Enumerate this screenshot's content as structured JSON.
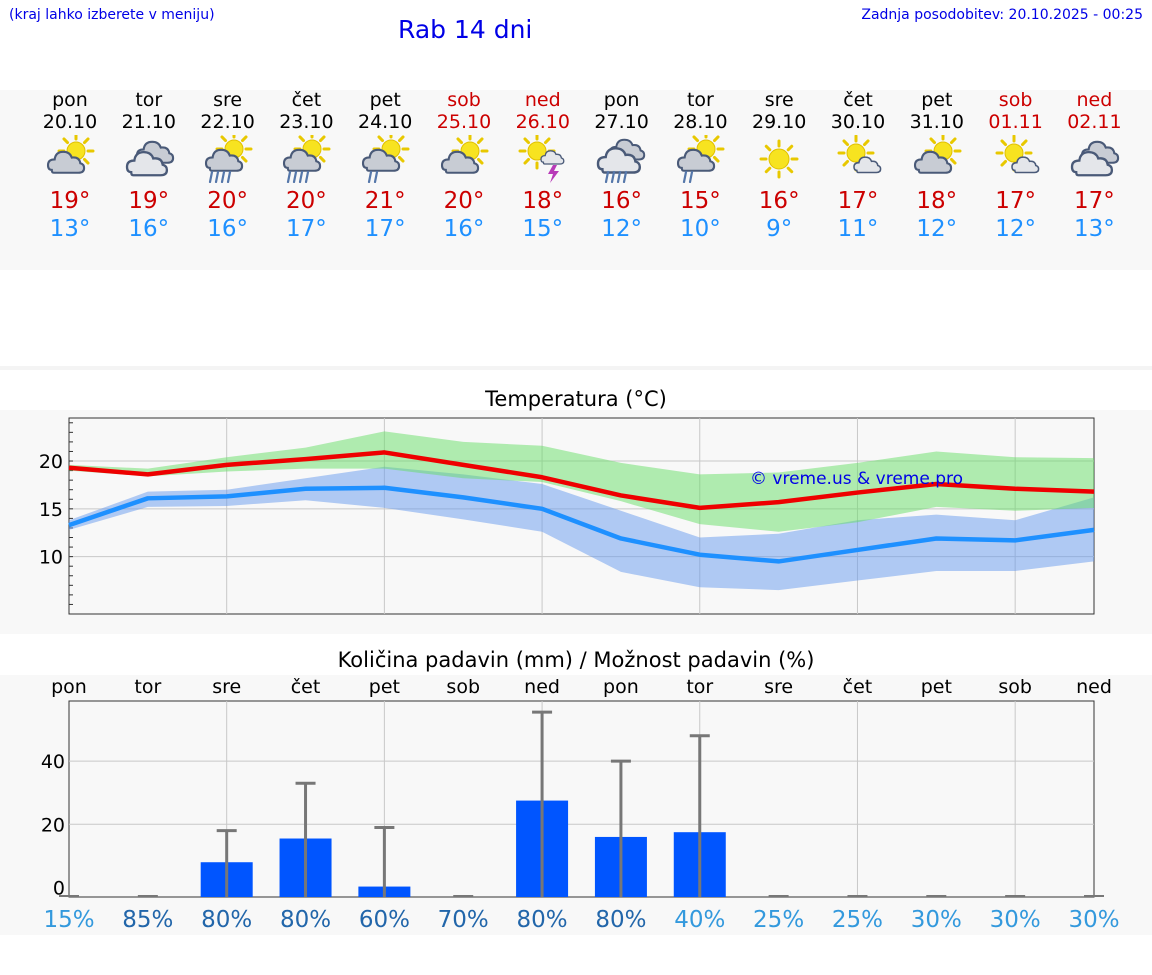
{
  "header": {
    "left_note": "(kraj lahko izberete v meniju)",
    "title": "Rab 14 dni",
    "updated": "Zadnja posodobitev: 20.10.2025 - 00:25"
  },
  "colors": {
    "accent_blue": "#0000e6",
    "max_red": "#cc0000",
    "min_blue": "#1e90ff",
    "bar_blue": "#0055ff"
  },
  "days": [
    {
      "name": "pon",
      "date": "20.10",
      "weekend": false,
      "icon": "sun-cloud-icon",
      "hi": "19°",
      "lo": "13°"
    },
    {
      "name": "tor",
      "date": "21.10",
      "weekend": false,
      "icon": "cloudy-icon",
      "hi": "19°",
      "lo": "16°"
    },
    {
      "name": "sre",
      "date": "22.10",
      "weekend": false,
      "icon": "sun-cloud-rain-icon",
      "hi": "20°",
      "lo": "16°"
    },
    {
      "name": "čet",
      "date": "23.10",
      "weekend": false,
      "icon": "sun-cloud-rain-icon",
      "hi": "20°",
      "lo": "17°"
    },
    {
      "name": "pet",
      "date": "24.10",
      "weekend": false,
      "icon": "sun-cloud-light-rain-icon",
      "hi": "21°",
      "lo": "17°"
    },
    {
      "name": "sob",
      "date": "25.10",
      "weekend": true,
      "icon": "sun-cloud-icon",
      "hi": "20°",
      "lo": "16°"
    },
    {
      "name": "ned",
      "date": "26.10",
      "weekend": true,
      "icon": "sun-thunder-icon",
      "hi": "18°",
      "lo": "15°"
    },
    {
      "name": "pon",
      "date": "27.10",
      "weekend": false,
      "icon": "cloud-rain-icon",
      "hi": "16°",
      "lo": "12°"
    },
    {
      "name": "tor",
      "date": "28.10",
      "weekend": false,
      "icon": "sun-cloud-light-rain-icon",
      "hi": "15°",
      "lo": "10°"
    },
    {
      "name": "sre",
      "date": "29.10",
      "weekend": false,
      "icon": "sun-icon",
      "hi": "16°",
      "lo": "9°"
    },
    {
      "name": "čet",
      "date": "30.10",
      "weekend": false,
      "icon": "sun-small-cloud-icon",
      "hi": "17°",
      "lo": "11°"
    },
    {
      "name": "pet",
      "date": "31.10",
      "weekend": false,
      "icon": "sun-cloud-icon",
      "hi": "18°",
      "lo": "12°"
    },
    {
      "name": "sob",
      "date": "01.11",
      "weekend": true,
      "icon": "sun-small-cloud-icon",
      "hi": "17°",
      "lo": "12°"
    },
    {
      "name": "ned",
      "date": "02.11",
      "weekend": true,
      "icon": "cloudy-icon",
      "hi": "17°",
      "lo": "13°"
    }
  ],
  "chart_data": [
    {
      "type": "line",
      "title": "Temperatura (°C)",
      "watermark": "© vreme.us & vreme.pro",
      "x": [
        0,
        1,
        2,
        3,
        4,
        5,
        6,
        7,
        8,
        9,
        10,
        11,
        12,
        13
      ],
      "ylim": [
        4,
        24.5
      ],
      "yticks": [
        10,
        15,
        20
      ],
      "series": [
        {
          "name": "max",
          "color": "#ee0000",
          "values": [
            19.3,
            18.6,
            19.6,
            20.2,
            20.9,
            19.6,
            18.3,
            16.4,
            15.1,
            15.7,
            16.7,
            17.6,
            17.1,
            16.8
          ]
        },
        {
          "name": "min",
          "color": "#1e90ff",
          "values": [
            13.3,
            16.1,
            16.3,
            17.1,
            17.2,
            16.2,
            15.0,
            11.9,
            10.2,
            9.5,
            10.7,
            11.9,
            11.7,
            12.8
          ]
        }
      ],
      "bands": [
        {
          "name": "max-range",
          "color": "#66dd66",
          "upper": [
            19.6,
            19.2,
            20.4,
            21.4,
            23.1,
            22.0,
            21.6,
            19.8,
            18.6,
            18.8,
            19.8,
            21.0,
            20.4,
            20.3
          ],
          "lower": [
            19.0,
            18.4,
            18.9,
            19.2,
            19.2,
            18.2,
            17.8,
            15.8,
            13.4,
            12.6,
            13.6,
            15.2,
            14.8,
            15.1
          ]
        },
        {
          "name": "min-range",
          "color": "#6699ee",
          "upper": [
            13.8,
            16.8,
            17.0,
            18.2,
            19.4,
            18.6,
            17.6,
            14.8,
            12.0,
            12.4,
            13.8,
            14.4,
            13.8,
            16.2
          ]
        },
        {
          "name": "min-range-lower",
          "color": "#6699ee",
          "lower": [
            12.8,
            15.2,
            15.3,
            15.9,
            15.1,
            13.9,
            12.6,
            8.4,
            6.8,
            6.5,
            7.5,
            8.5,
            8.5,
            9.5
          ]
        }
      ]
    },
    {
      "type": "bar",
      "title": "Količina padavin (mm) / Možnost padavin (%)",
      "categories": [
        "pon",
        "tor",
        "sre",
        "čet",
        "pet",
        "sob",
        "ned",
        "pon",
        "tor",
        "sre",
        "čet",
        "pet",
        "sob",
        "ned"
      ],
      "values": [
        0,
        0,
        8,
        15.5,
        0.3,
        0,
        27.5,
        16,
        17.5,
        0,
        0,
        0,
        0,
        0
      ],
      "error_high": [
        0,
        0,
        18,
        33,
        19,
        0,
        55.5,
        40,
        48,
        0,
        0,
        0,
        0,
        0
      ],
      "ylim": [
        -3,
        59
      ],
      "yticks": [
        0,
        20,
        40
      ],
      "probability": [
        {
          "label": "15%",
          "color": "#3399dd"
        },
        {
          "label": "85%",
          "color": "#2266aa"
        },
        {
          "label": "80%",
          "color": "#2266aa"
        },
        {
          "label": "80%",
          "color": "#2266aa"
        },
        {
          "label": "60%",
          "color": "#2266aa"
        },
        {
          "label": "70%",
          "color": "#2266aa"
        },
        {
          "label": "80%",
          "color": "#2266aa"
        },
        {
          "label": "80%",
          "color": "#2266aa"
        },
        {
          "label": "40%",
          "color": "#3399dd"
        },
        {
          "label": "25%",
          "color": "#3399dd"
        },
        {
          "label": "25%",
          "color": "#3399dd"
        },
        {
          "label": "30%",
          "color": "#3399dd"
        },
        {
          "label": "30%",
          "color": "#3399dd"
        },
        {
          "label": "30%",
          "color": "#3399dd"
        }
      ]
    }
  ]
}
